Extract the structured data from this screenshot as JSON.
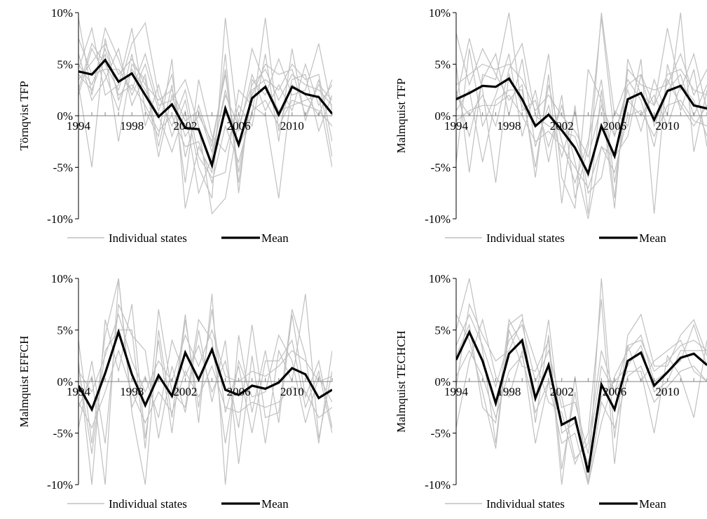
{
  "legend": {
    "individual_label": "Individual states",
    "mean_label": "Mean"
  },
  "colors": {
    "individual": "#c0c0c0",
    "mean": "#000000",
    "axis": "#000000",
    "zero_line": "#808080"
  },
  "chart_data": [
    {
      "type": "line",
      "title": "",
      "ylabel": "Törnqvist TFP",
      "xlabel": "",
      "ylim": [
        -10,
        10
      ],
      "yticks": [
        "-10%",
        "-5%",
        "0%",
        "5%",
        "10%"
      ],
      "xticks": [
        "1994",
        "1998",
        "2002",
        "2006",
        "2010"
      ],
      "x": [
        1994,
        1995,
        1996,
        1997,
        1998,
        1999,
        2000,
        2001,
        2002,
        2003,
        2004,
        2005,
        2006,
        2007,
        2008,
        2009,
        2010,
        2011,
        2012,
        2013
      ],
      "legend_position": "bottom",
      "series": [
        {
          "name": "Mean",
          "values": [
            4.3,
            4.0,
            5.4,
            3.3,
            4.1,
            2.0,
            -0.1,
            1.1,
            -1.2,
            -1.3,
            -4.8,
            0.7,
            -2.8,
            1.7,
            2.8,
            0.1,
            2.8,
            2.1,
            1.8,
            0.2
          ]
        }
      ],
      "individual_series": [
        [
          3.5,
          5.2,
          7.0,
          4.0,
          5.5,
          3.0,
          1.5,
          2.5,
          -0.5,
          0.5,
          -3.5,
          2.0,
          -1.0,
          3.0,
          4.5,
          1.5,
          4.0,
          3.0,
          2.5,
          1.0
        ],
        [
          5.0,
          3.0,
          6.5,
          2.0,
          3.0,
          1.0,
          -1.5,
          0.0,
          -3.0,
          -2.5,
          -6.5,
          -1.0,
          -4.5,
          0.5,
          1.5,
          -1.0,
          1.5,
          1.0,
          0.5,
          -1.0
        ],
        [
          9.5,
          2.0,
          8.5,
          5.5,
          2.0,
          5.0,
          0.5,
          4.0,
          -4.0,
          1.0,
          -3.0,
          4.5,
          -6.5,
          2.5,
          3.5,
          2.5,
          5.0,
          3.5,
          4.0,
          -2.5
        ],
        [
          2.0,
          6.5,
          4.0,
          0.5,
          6.0,
          -1.0,
          3.0,
          -2.0,
          1.5,
          -5.0,
          -8.0,
          9.5,
          -1.5,
          4.0,
          0.5,
          3.0,
          0.5,
          5.0,
          1.0,
          3.0
        ],
        [
          6.0,
          1.5,
          3.5,
          6.5,
          1.0,
          4.0,
          -3.0,
          3.0,
          -6.5,
          3.5,
          -2.0,
          -3.5,
          1.0,
          -1.0,
          6.0,
          -2.5,
          6.5,
          -0.5,
          3.5,
          -4.0
        ],
        [
          4.5,
          8.5,
          2.0,
          3.0,
          8.5,
          0.5,
          -2.0,
          5.5,
          -9.0,
          -3.0,
          -5.5,
          6.0,
          -7.5,
          3.5,
          2.0,
          5.5,
          2.0,
          2.5,
          7.0,
          0.5
        ],
        [
          3.0,
          -5.0,
          7.5,
          1.5,
          4.5,
          2.5,
          0.0,
          -3.5,
          0.5,
          -7.5,
          -4.0,
          2.5,
          -3.0,
          0.0,
          9.5,
          -1.5,
          3.5,
          4.0,
          -1.5,
          2.0
        ],
        [
          7.5,
          4.0,
          4.5,
          4.5,
          2.5,
          6.0,
          1.0,
          1.5,
          3.5,
          -1.0,
          -9.5,
          -8.0,
          -0.5,
          6.5,
          3.0,
          0.5,
          1.0,
          1.5,
          2.0,
          -5.0
        ],
        [
          4.0,
          2.5,
          6.0,
          -2.5,
          5.0,
          3.5,
          -4.0,
          2.0,
          -2.0,
          0.0,
          -2.5,
          4.0,
          -5.5,
          2.0,
          5.0,
          4.0,
          4.5,
          0.0,
          3.0,
          1.5
        ],
        [
          2.5,
          7.0,
          5.0,
          2.5,
          7.0,
          9.0,
          2.0,
          -1.0,
          2.5,
          -4.0,
          -6.0,
          -5.5,
          2.5,
          1.0,
          0.0,
          -8.0,
          3.0,
          2.0,
          0.0,
          3.5
        ]
      ]
    },
    {
      "type": "line",
      "title": "",
      "ylabel": "Malmquist TFP",
      "xlabel": "",
      "ylim": [
        -10,
        10
      ],
      "yticks": [
        "-10%",
        "-5%",
        "0%",
        "5%",
        "10%"
      ],
      "xticks": [
        "1994",
        "1998",
        "2002",
        "2006",
        "2010"
      ],
      "x": [
        1994,
        1995,
        1996,
        1997,
        1998,
        1999,
        2000,
        2001,
        2002,
        2003,
        2004,
        2005,
        2006,
        2007,
        2008,
        2009,
        2010,
        2011,
        2012,
        2013
      ],
      "legend_position": "bottom",
      "series": [
        {
          "name": "Mean",
          "values": [
            1.6,
            2.2,
            2.9,
            2.8,
            3.6,
            1.6,
            -1.0,
            0.1,
            -1.4,
            -3.1,
            -5.6,
            -1.0,
            -3.9,
            1.6,
            2.2,
            -0.4,
            2.4,
            2.9,
            1.0,
            0.7
          ]
        }
      ],
      "individual_series": [
        [
          3.0,
          4.0,
          5.0,
          4.5,
          5.0,
          3.5,
          0.5,
          2.0,
          0.0,
          -1.5,
          -4.0,
          1.0,
          -2.0,
          3.0,
          4.0,
          1.0,
          4.0,
          4.5,
          2.5,
          2.0
        ],
        [
          -0.5,
          0.5,
          1.0,
          1.0,
          2.0,
          0.0,
          -2.5,
          -1.5,
          -3.0,
          -5.0,
          -7.0,
          -3.0,
          -5.5,
          0.0,
          0.5,
          -2.0,
          1.0,
          1.5,
          -0.5,
          -1.0
        ],
        [
          8.0,
          3.0,
          6.5,
          4.0,
          1.5,
          3.0,
          -6.0,
          4.0,
          -8.5,
          1.0,
          -9.5,
          2.5,
          -8.0,
          4.5,
          3.0,
          2.5,
          3.0,
          6.0,
          2.0,
          4.5
        ],
        [
          -4.5,
          6.5,
          -1.0,
          2.0,
          6.0,
          -2.0,
          2.5,
          -4.5,
          2.0,
          -8.0,
          -3.0,
          9.5,
          -2.0,
          2.5,
          -1.5,
          3.5,
          0.0,
          10.0,
          -3.5,
          2.5
        ],
        [
          2.5,
          -2.0,
          3.5,
          6.0,
          0.0,
          5.5,
          -3.0,
          1.0,
          -4.0,
          0.5,
          -7.5,
          -6.0,
          0.5,
          -1.0,
          5.5,
          -9.5,
          5.0,
          0.5,
          4.5,
          -3.0
        ],
        [
          1.5,
          7.5,
          2.5,
          -6.5,
          4.0,
          1.0,
          -1.0,
          6.0,
          -6.0,
          -9.0,
          4.5,
          1.5,
          -9.0,
          5.5,
          2.0,
          1.0,
          8.5,
          2.5,
          6.0,
          0.5
        ],
        [
          5.0,
          -5.5,
          4.0,
          3.5,
          10.0,
          0.5,
          1.5,
          -3.0,
          1.0,
          -4.5,
          -10.0,
          -3.0,
          -4.0,
          -2.0,
          4.0,
          -1.0,
          2.5,
          4.0,
          0.0,
          3.0
        ],
        [
          0.5,
          2.5,
          -4.5,
          1.5,
          2.5,
          2.5,
          -5.0,
          3.0,
          -2.5,
          -6.5,
          -2.5,
          3.5,
          -6.5,
          1.5,
          0.0,
          2.0,
          -1.0,
          3.0,
          1.5,
          -2.0
        ],
        [
          2.0,
          0.0,
          2.0,
          -1.0,
          4.5,
          7.0,
          0.0,
          -1.0,
          -1.5,
          -2.0,
          -6.0,
          10.0,
          0.0,
          3.5,
          1.5,
          -3.0,
          3.5,
          1.0,
          -1.0,
          1.0
        ]
      ]
    },
    {
      "type": "line",
      "title": "",
      "ylabel": "Malmquist EFFCH",
      "xlabel": "",
      "ylim": [
        -10,
        10
      ],
      "yticks": [
        "-10%",
        "-5%",
        "0%",
        "5%",
        "10%"
      ],
      "xticks": [
        "1994",
        "1998",
        "2002",
        "2006",
        "2010"
      ],
      "x": [
        1994,
        1995,
        1996,
        1997,
        1998,
        1999,
        2000,
        2001,
        2002,
        2003,
        2004,
        2005,
        2006,
        2007,
        2008,
        2009,
        2010,
        2011,
        2012,
        2013
      ],
      "legend_position": "bottom",
      "series": [
        {
          "name": "Mean",
          "values": [
            -0.4,
            -2.7,
            0.8,
            4.8,
            0.7,
            -2.3,
            0.6,
            -1.4,
            2.8,
            0.2,
            3.1,
            -0.8,
            -1.3,
            -0.4,
            -0.7,
            -0.1,
            1.3,
            0.7,
            -1.6,
            -0.8
          ]
        }
      ],
      "individual_series": [
        [
          1.0,
          -1.0,
          2.5,
          6.5,
          2.0,
          -1.0,
          2.0,
          0.0,
          4.5,
          1.5,
          5.0,
          0.5,
          0.0,
          1.0,
          0.5,
          1.5,
          3.0,
          2.0,
          0.0,
          0.5
        ],
        [
          -2.0,
          -4.5,
          -1.0,
          3.0,
          -1.0,
          -4.0,
          -1.0,
          -3.0,
          1.0,
          -1.5,
          1.5,
          -2.5,
          -3.0,
          -2.0,
          -2.5,
          -2.0,
          -0.5,
          -1.0,
          -3.5,
          -2.5
        ],
        [
          4.0,
          -6.0,
          4.5,
          10.0,
          -3.0,
          -10.0,
          5.0,
          -3.5,
          6.5,
          -4.0,
          8.5,
          -10.0,
          4.5,
          -3.0,
          3.0,
          -4.0,
          6.5,
          -1.5,
          2.0,
          -4.5
        ],
        [
          -4.5,
          2.0,
          -6.0,
          7.5,
          4.5,
          3.0,
          -5.5,
          1.5,
          -3.0,
          5.0,
          -2.0,
          4.0,
          -8.0,
          2.5,
          -6.0,
          3.0,
          0.0,
          8.5,
          -5.5,
          1.0
        ],
        [
          2.0,
          -10.0,
          6.0,
          1.0,
          7.5,
          -5.5,
          4.0,
          -5.0,
          6.0,
          -2.5,
          7.0,
          -3.0,
          1.5,
          -5.0,
          2.0,
          2.0,
          4.0,
          -2.5,
          1.0,
          -5.0
        ],
        [
          -2.5,
          0.5,
          -10.0,
          10.0,
          -2.5,
          0.5,
          -3.5,
          4.0,
          0.5,
          3.5,
          -1.0,
          2.0,
          -4.5,
          5.5,
          -3.5,
          -3.0,
          7.0,
          2.5,
          -6.0,
          3.0
        ],
        [
          1.5,
          -7.0,
          3.0,
          5.0,
          5.0,
          -6.5,
          7.0,
          -1.0,
          -2.5,
          6.0,
          4.0,
          -6.0,
          2.0,
          -1.5,
          -1.0,
          4.5,
          2.0,
          -4.0,
          0.5,
          -2.0
        ]
      ]
    },
    {
      "type": "line",
      "title": "",
      "ylabel": "Malmquist TECHCH",
      "xlabel": "",
      "ylim": [
        -10,
        10
      ],
      "yticks": [
        "-10%",
        "-5%",
        "0%",
        "5%",
        "10%"
      ],
      "xticks": [
        "1994",
        "1998",
        "2002",
        "2006",
        "2010"
      ],
      "x": [
        1994,
        1995,
        1996,
        1997,
        1998,
        1999,
        2000,
        2001,
        2002,
        2003,
        2004,
        2005,
        2006,
        2007,
        2008,
        2009,
        2010,
        2011,
        2012,
        2013
      ],
      "legend_position": "bottom",
      "series": [
        {
          "name": "Mean",
          "values": [
            2.1,
            4.8,
            2.0,
            -2.1,
            2.7,
            4.0,
            -1.6,
            1.6,
            -4.2,
            -3.5,
            -8.8,
            -0.3,
            -2.7,
            2.0,
            2.8,
            -0.4,
            0.9,
            2.3,
            2.7,
            1.6
          ]
        }
      ],
      "individual_series": [
        [
          3.5,
          6.5,
          3.5,
          -0.5,
          4.0,
          5.5,
          0.0,
          3.0,
          -2.5,
          -2.0,
          -7.0,
          1.5,
          -1.0,
          3.5,
          4.0,
          1.0,
          2.0,
          3.5,
          4.0,
          3.0
        ],
        [
          0.5,
          3.0,
          0.5,
          -3.5,
          1.0,
          2.5,
          -3.0,
          0.0,
          -6.0,
          -5.0,
          -10.0,
          -2.0,
          -4.5,
          0.5,
          1.5,
          -2.0,
          -0.5,
          1.0,
          1.5,
          0.0
        ],
        [
          5.0,
          10.0,
          3.0,
          -6.0,
          5.5,
          6.5,
          -4.0,
          4.5,
          -8.5,
          -1.0,
          -10.0,
          10.0,
          -5.5,
          4.5,
          6.5,
          1.5,
          1.5,
          4.5,
          6.0,
          2.5
        ],
        [
          -4.5,
          2.0,
          6.0,
          0.5,
          -1.5,
          3.0,
          -6.0,
          0.0,
          -1.5,
          -7.5,
          -6.0,
          3.0,
          -1.0,
          1.0,
          1.0,
          -5.0,
          2.5,
          0.5,
          -3.5,
          4.0
        ],
        [
          6.5,
          4.0,
          -1.0,
          -6.5,
          5.0,
          1.5,
          1.0,
          4.0,
          -10.0,
          0.5,
          -10.0,
          -4.0,
          0.5,
          3.0,
          4.5,
          0.0,
          1.0,
          2.0,
          5.5,
          1.5
        ],
        [
          -0.5,
          7.5,
          4.5,
          2.0,
          3.0,
          6.0,
          2.0,
          -2.0,
          -3.0,
          -8.0,
          -5.0,
          8.0,
          -8.0,
          3.5,
          0.0,
          2.0,
          3.0,
          4.0,
          1.0,
          0.0
        ],
        [
          2.5,
          5.5,
          -2.5,
          -4.0,
          6.0,
          3.5,
          -2.0,
          6.0,
          -5.0,
          -4.0,
          -8.0,
          -1.5,
          0.0,
          1.5,
          3.5,
          -1.0,
          0.0,
          3.0,
          3.0,
          3.0
        ]
      ]
    }
  ]
}
